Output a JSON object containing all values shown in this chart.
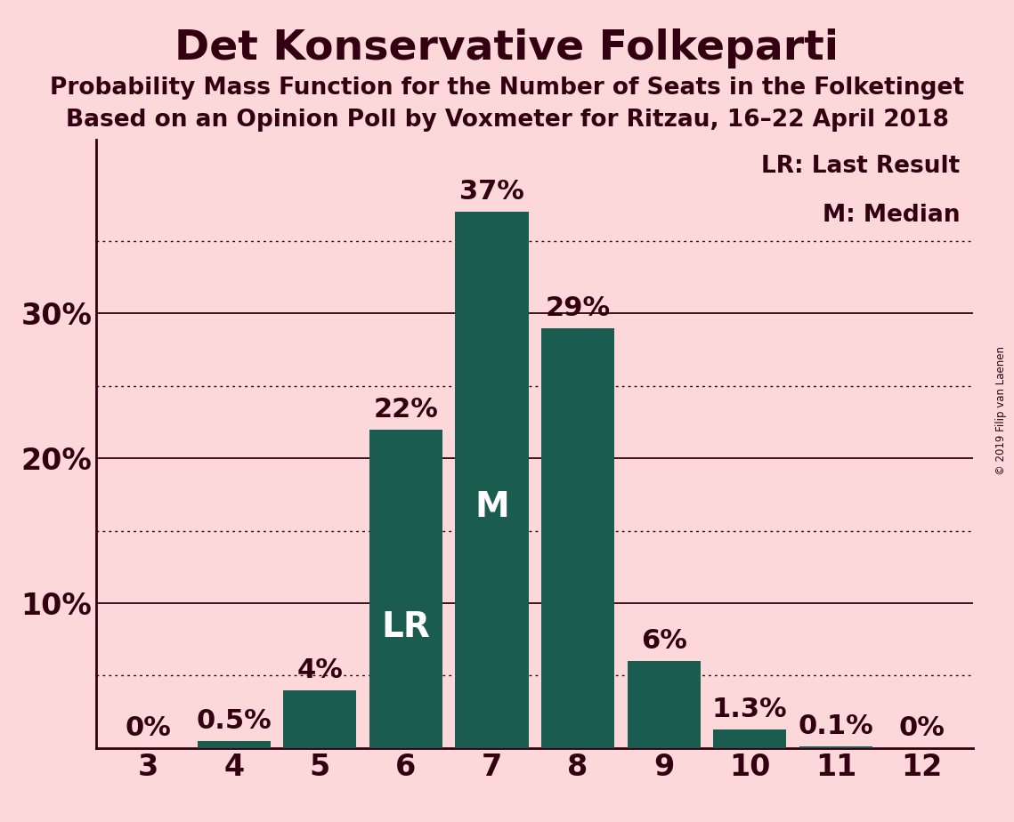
{
  "title": "Det Konservative Folkeparti",
  "subtitle1": "Probability Mass Function for the Number of Seats in the Folketinget",
  "subtitle2": "Based on an Opinion Poll by Voxmeter for Ritzau, 16–22 April 2018",
  "copyright": "© 2019 Filip van Laenen",
  "categories": [
    3,
    4,
    5,
    6,
    7,
    8,
    9,
    10,
    11,
    12
  ],
  "values": [
    0.0,
    0.5,
    4.0,
    22.0,
    37.0,
    29.0,
    6.0,
    1.3,
    0.1,
    0.0
  ],
  "labels": [
    "0%",
    "0.5%",
    "4%",
    "22%",
    "37%",
    "29%",
    "6%",
    "1.3%",
    "0.1%",
    "0%"
  ],
  "bar_color": "#1a5c50",
  "background_color": "#fdd8db",
  "text_color": "#320010",
  "title_fontsize": 34,
  "subtitle_fontsize": 19,
  "label_fontsize": 19,
  "tick_fontsize": 24,
  "bar_label_fontsize": 22,
  "lr_index": 3,
  "m_index": 4,
  "ylim": [
    0,
    42
  ],
  "yticks": [
    0,
    10,
    20,
    30
  ],
  "ytick_labels": [
    "",
    "10%",
    "20%",
    "30%"
  ],
  "solid_gridlines": [
    10,
    20,
    30
  ],
  "dotted_gridlines": [
    5,
    15,
    25,
    35
  ],
  "legend_text1": "LR: Last Result",
  "legend_text2": "M: Median"
}
